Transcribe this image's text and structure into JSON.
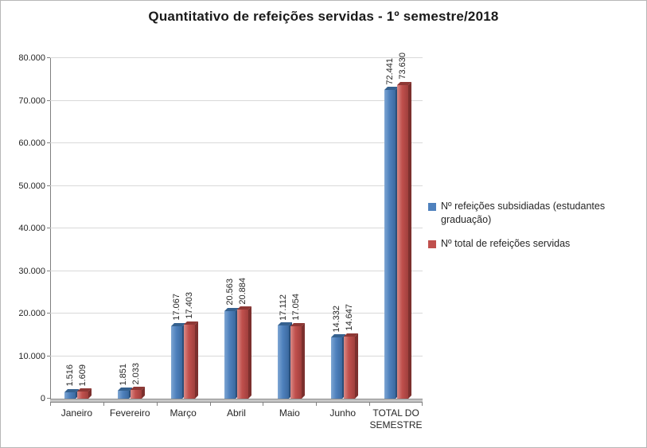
{
  "title": "Quantitativo de refeições servidas - 1º semestre/2018",
  "chart_data": {
    "type": "bar",
    "title": "Quantitativo de refeições servidas - 1º semestre/2018",
    "categories": [
      "Janeiro",
      "Fevereiro",
      "Março",
      "Abril",
      "Maio",
      "Junho",
      "TOTAL DO\nSEMESTRE"
    ],
    "series": [
      {
        "name": "Nº refeições subsidiadas (estudantes graduação)",
        "color": "#4F81BD",
        "gradient": [
          "#7EA6D3",
          "#4F81BD",
          "#3A699F"
        ],
        "top_color": "#35618F",
        "side_color": "#2B4F79",
        "values": [
          1516,
          1851,
          17067,
          20563,
          17112,
          14332,
          72441
        ],
        "labels": [
          "1.516",
          "1.851",
          "17.067",
          "20.563",
          "17.112",
          "14.332",
          "72.441"
        ]
      },
      {
        "name": "Nº total de refeições servidas",
        "color": "#C0504D",
        "gradient": [
          "#D98A86",
          "#C0504D",
          "#A03F3C"
        ],
        "top_color": "#8E3835",
        "side_color": "#7C302E",
        "values": [
          1609,
          2033,
          17403,
          20884,
          17054,
          14647,
          73630
        ],
        "labels": [
          "1.609",
          "2.033",
          "17.403",
          "20.884",
          "17.054",
          "14.647",
          "73.630"
        ]
      }
    ],
    "xlabel": "",
    "ylabel": "",
    "ylim": [
      0,
      80000
    ],
    "ytick_interval": 10000,
    "ytick_labels": [
      "0",
      "10.000",
      "20.000",
      "30.000",
      "40.000",
      "50.000",
      "60.000",
      "70.000",
      "80.000"
    ],
    "grid": true,
    "legend_position": "right"
  }
}
